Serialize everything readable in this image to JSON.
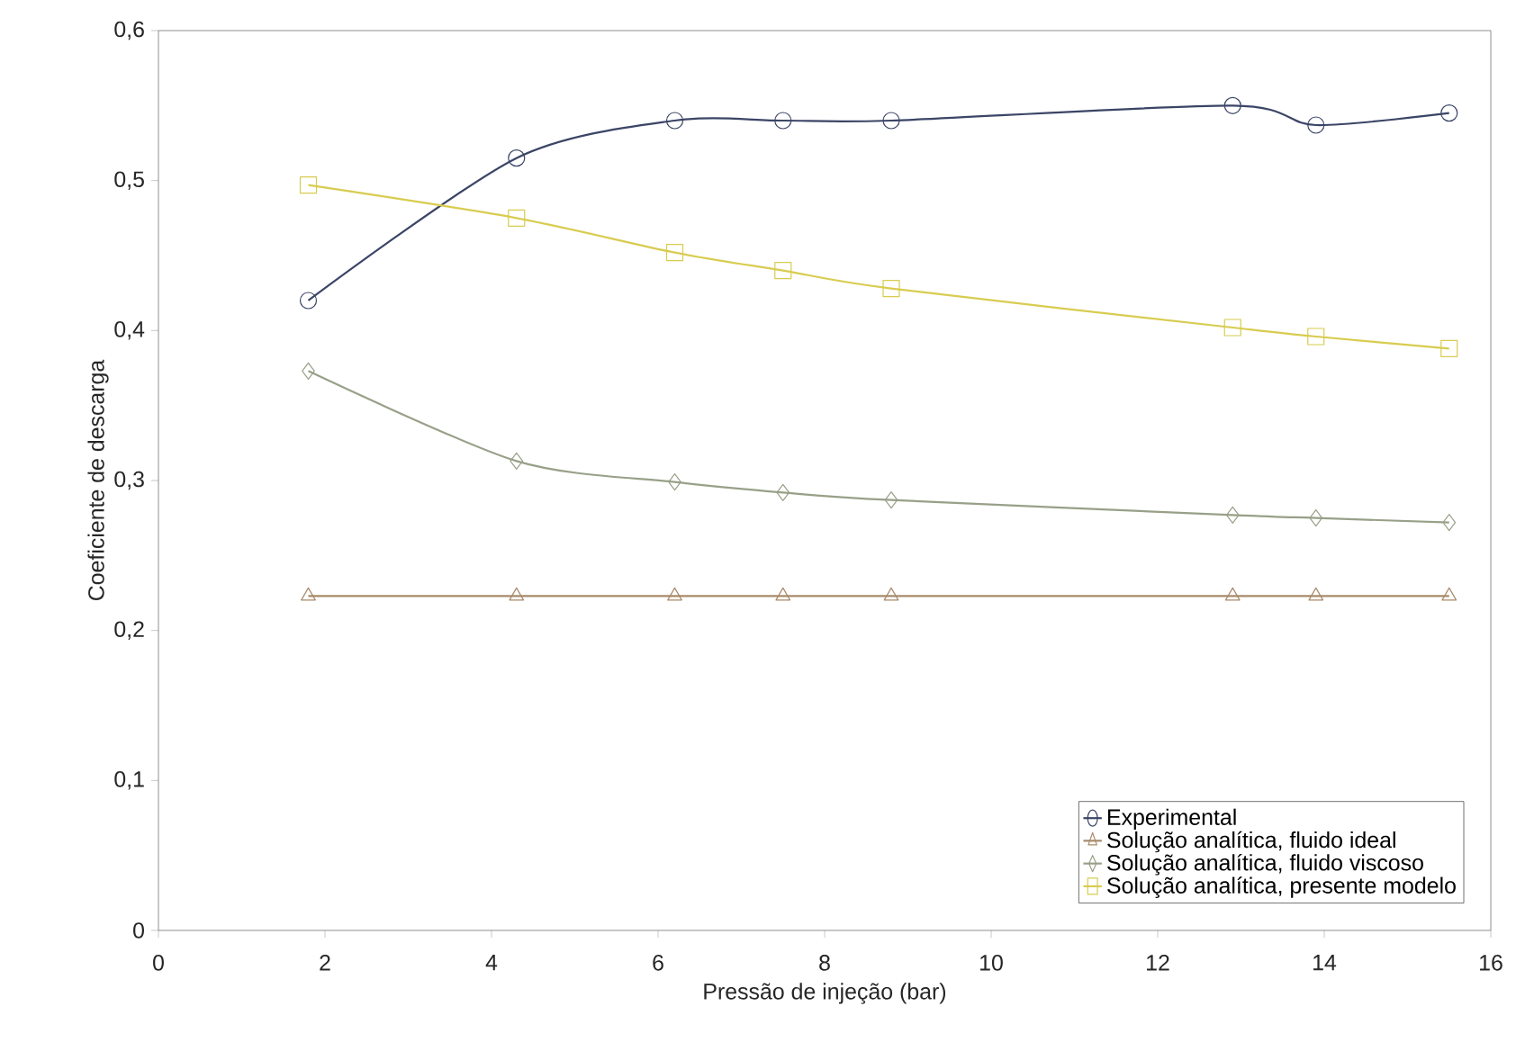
{
  "chart_data": {
    "type": "line",
    "xlabel": "Pressão de injeção (bar)",
    "ylabel": "Coeficiente de descarga",
    "x": [
      1.8,
      4.3,
      6.2,
      7.5,
      8.8,
      12.9,
      13.9,
      15.5
    ],
    "series": [
      {
        "name": "Experimental",
        "color": "#3b4566",
        "marker": "circle",
        "values": [
          0.42,
          0.515,
          0.54,
          0.54,
          0.54,
          0.55,
          0.537,
          0.545
        ]
      },
      {
        "name": "Solução analítica, fluido ideal",
        "color": "#a88a6a",
        "marker": "triangle",
        "values": [
          0.223,
          0.223,
          0.223,
          0.223,
          0.223,
          0.223,
          0.223,
          0.223
        ]
      },
      {
        "name": "Solução analítica, fluido viscoso",
        "color": "#98a088",
        "marker": "diamond",
        "values": [
          0.373,
          0.313,
          0.299,
          0.292,
          0.287,
          0.277,
          0.275,
          0.272
        ]
      },
      {
        "name": "Solução analítica, presente modelo",
        "color": "#d8cc50",
        "marker": "square",
        "values": [
          0.497,
          0.475,
          0.452,
          0.44,
          0.428,
          0.402,
          0.396,
          0.388
        ]
      }
    ],
    "xlim": [
      0,
      16
    ],
    "xticks": [
      0,
      2,
      4,
      6,
      8,
      10,
      12,
      14,
      16
    ],
    "ylim": [
      0,
      0.6
    ],
    "yticks": [
      0,
      {
        "value": 0.1,
        "label": "0,1"
      },
      {
        "value": 0.2,
        "label": "0,2"
      },
      {
        "value": 0.3,
        "label": "0,3"
      },
      {
        "value": 0.4,
        "label": "0,4"
      },
      {
        "value": 0.5,
        "label": "0,5"
      },
      {
        "value": 0.6,
        "label": "0,6"
      }
    ],
    "legend": "bottom right",
    "line_style": "solid"
  }
}
